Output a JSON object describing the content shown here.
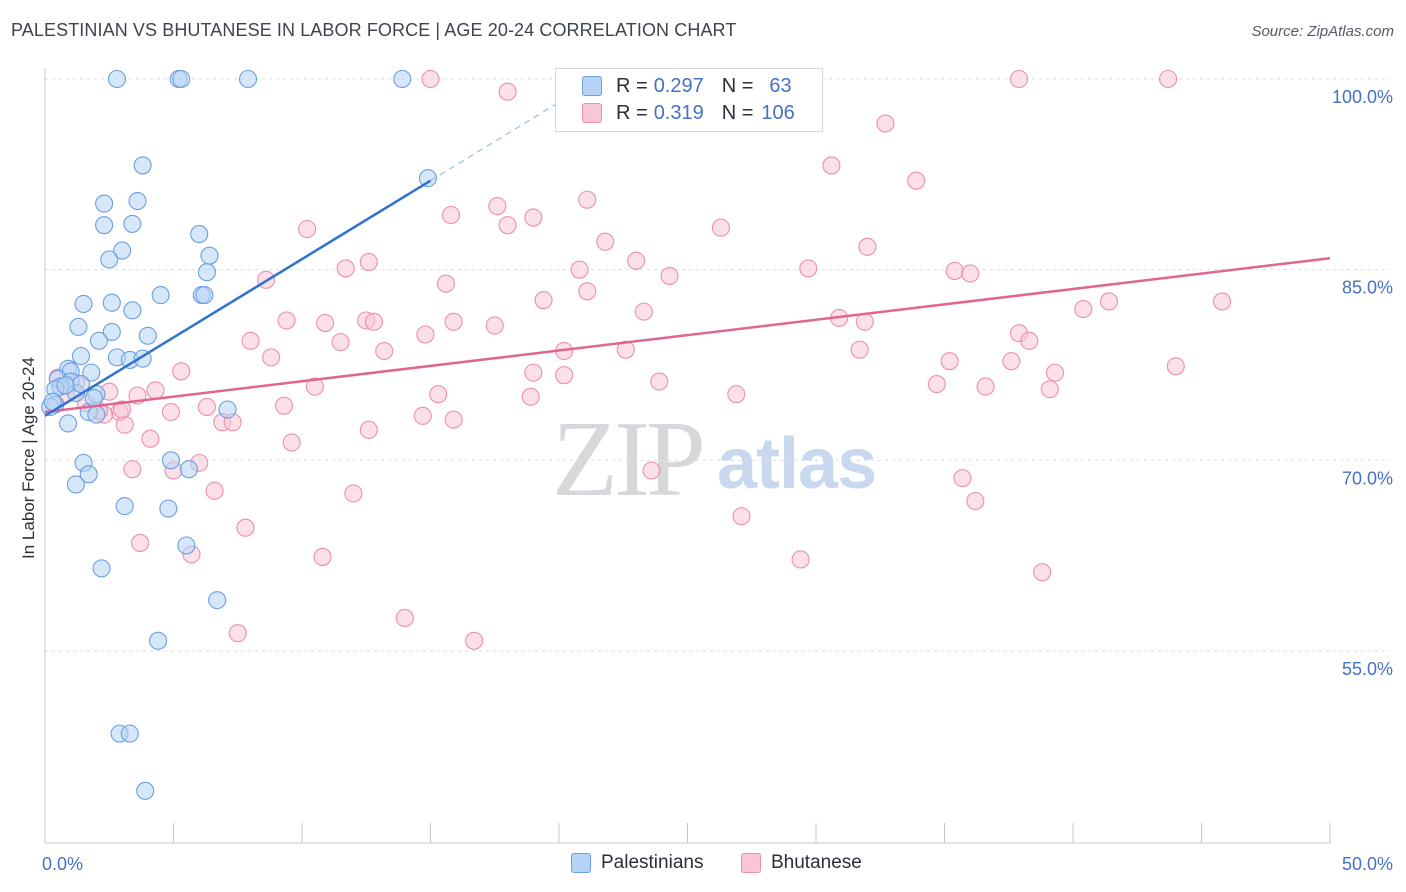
{
  "title": "PALESTINIAN VS BHUTANESE IN LABOR FORCE | AGE 20-24 CORRELATION CHART",
  "source": "Source: ZipAtlas.com",
  "watermark": {
    "zip": "ZIP",
    "atlas": "atlas"
  },
  "legend": {
    "series": [
      {
        "name": "Palestinians",
        "r_label": "R =",
        "r_value": "0.297",
        "n_label": "N =",
        "n_value": "63",
        "fill": "#b7d3f6",
        "stroke": "#6a9fe0"
      },
      {
        "name": "Bhutanese",
        "r_label": "R =",
        "r_value": "0.319",
        "n_label": "N =",
        "n_value": "106",
        "fill": "#f9c6d6",
        "stroke": "#ec8fab"
      }
    ]
  },
  "colors": {
    "blue_line": "#2f72d0",
    "pink_line": "#e06590",
    "axis_tick_text": "#4472c4",
    "grid": "#dadde3"
  },
  "chart_data": {
    "type": "scatter",
    "title": "PALESTINIAN VS BHUTANESE IN LABOR FORCE | AGE 20-24 CORRELATION CHART",
    "xlabel": "",
    "ylabel": "In Labor Force | Age 20-24",
    "xlim": [
      0,
      50
    ],
    "ylim": [
      40,
      102
    ],
    "x_tick_labels": [
      "0.0%",
      "50.0%"
    ],
    "y_ticks": [
      55,
      70,
      85,
      100
    ],
    "y_tick_labels": [
      "55.0%",
      "70.0%",
      "85.0%",
      "100.0%"
    ],
    "grid": true,
    "legend_position": "top-center",
    "series": [
      {
        "name": "Palestinians",
        "trend": {
          "x": [
            0,
            15
          ],
          "y": [
            73.5,
            92.0
          ],
          "dashed_to": [
            21,
            99.4
          ]
        },
        "points": [
          [
            2.8,
            100
          ],
          [
            5.2,
            100
          ],
          [
            5.3,
            100
          ],
          [
            7.9,
            100
          ],
          [
            13.9,
            100
          ],
          [
            14.9,
            92.2
          ],
          [
            3.8,
            93.2
          ],
          [
            2.3,
            90.2
          ],
          [
            3.6,
            90.4
          ],
          [
            2.3,
            88.5
          ],
          [
            3.4,
            88.6
          ],
          [
            6.0,
            87.8
          ],
          [
            3.0,
            86.5
          ],
          [
            2.5,
            85.8
          ],
          [
            6.4,
            86.1
          ],
          [
            6.3,
            84.8
          ],
          [
            4.5,
            83.0
          ],
          [
            6.1,
            83.0
          ],
          [
            6.2,
            83.0
          ],
          [
            1.5,
            82.3
          ],
          [
            2.6,
            82.4
          ],
          [
            3.4,
            81.8
          ],
          [
            1.3,
            80.5
          ],
          [
            2.6,
            80.1
          ],
          [
            4.0,
            79.8
          ],
          [
            2.1,
            79.4
          ],
          [
            1.4,
            78.2
          ],
          [
            2.8,
            78.1
          ],
          [
            3.3,
            77.9
          ],
          [
            3.8,
            78.0
          ],
          [
            0.9,
            77.2
          ],
          [
            1.0,
            77.0
          ],
          [
            1.8,
            76.9
          ],
          [
            0.5,
            76.4
          ],
          [
            1.0,
            76.2
          ],
          [
            0.6,
            75.8
          ],
          [
            0.4,
            75.6
          ],
          [
            1.2,
            75.3
          ],
          [
            2.0,
            75.2
          ],
          [
            0.4,
            74.4
          ],
          [
            0.2,
            74.2
          ],
          [
            1.7,
            73.8
          ],
          [
            2.0,
            73.6
          ],
          [
            7.1,
            74.0
          ],
          [
            0.9,
            72.9
          ],
          [
            1.5,
            69.8
          ],
          [
            4.9,
            70.0
          ],
          [
            1.7,
            68.9
          ],
          [
            5.6,
            69.3
          ],
          [
            1.2,
            68.1
          ],
          [
            3.1,
            66.4
          ],
          [
            4.8,
            66.2
          ],
          [
            5.5,
            63.3
          ],
          [
            2.2,
            61.5
          ],
          [
            6.7,
            59.0
          ],
          [
            4.4,
            55.8
          ],
          [
            2.9,
            48.5
          ],
          [
            3.3,
            48.5
          ],
          [
            3.9,
            44.0
          ],
          [
            1.4,
            76.0
          ],
          [
            0.8,
            75.9
          ],
          [
            0.3,
            74.6
          ],
          [
            1.9,
            74.9
          ]
        ]
      },
      {
        "name": "Bhutanese",
        "trend": {
          "x": [
            0,
            50
          ],
          "y": [
            73.8,
            85.9
          ]
        },
        "points": [
          [
            15.0,
            100
          ],
          [
            25.5,
            100
          ],
          [
            37.9,
            100
          ],
          [
            43.7,
            100
          ],
          [
            18.0,
            99.0
          ],
          [
            32.7,
            96.5
          ],
          [
            30.6,
            93.2
          ],
          [
            33.9,
            92.0
          ],
          [
            21.1,
            90.5
          ],
          [
            17.6,
            90.0
          ],
          [
            19.0,
            89.1
          ],
          [
            15.8,
            89.3
          ],
          [
            18.0,
            88.5
          ],
          [
            10.2,
            88.2
          ],
          [
            26.3,
            88.3
          ],
          [
            21.8,
            87.2
          ],
          [
            32.0,
            86.8
          ],
          [
            23.0,
            85.7
          ],
          [
            12.6,
            85.6
          ],
          [
            11.7,
            85.1
          ],
          [
            20.8,
            85.0
          ],
          [
            29.7,
            85.1
          ],
          [
            35.4,
            84.9
          ],
          [
            36.0,
            84.7
          ],
          [
            24.3,
            84.5
          ],
          [
            8.6,
            84.2
          ],
          [
            15.6,
            83.9
          ],
          [
            21.1,
            83.3
          ],
          [
            19.4,
            82.6
          ],
          [
            23.3,
            81.7
          ],
          [
            41.4,
            82.5
          ],
          [
            45.8,
            82.5
          ],
          [
            40.4,
            81.9
          ],
          [
            30.9,
            81.2
          ],
          [
            31.9,
            80.9
          ],
          [
            12.5,
            81.0
          ],
          [
            12.8,
            80.9
          ],
          [
            15.9,
            80.9
          ],
          [
            10.9,
            80.8
          ],
          [
            9.4,
            81.0
          ],
          [
            17.5,
            80.6
          ],
          [
            14.8,
            79.9
          ],
          [
            8.0,
            79.4
          ],
          [
            11.5,
            79.3
          ],
          [
            37.9,
            80.0
          ],
          [
            38.3,
            79.4
          ],
          [
            13.2,
            78.6
          ],
          [
            20.2,
            78.6
          ],
          [
            22.6,
            78.7
          ],
          [
            31.7,
            78.7
          ],
          [
            8.8,
            78.1
          ],
          [
            35.2,
            77.8
          ],
          [
            37.6,
            77.8
          ],
          [
            44.0,
            77.4
          ],
          [
            5.3,
            77.0
          ],
          [
            19.0,
            76.9
          ],
          [
            20.2,
            76.7
          ],
          [
            39.3,
            76.9
          ],
          [
            10.5,
            75.8
          ],
          [
            23.9,
            76.2
          ],
          [
            34.7,
            76.0
          ],
          [
            36.6,
            75.8
          ],
          [
            39.1,
            75.6
          ],
          [
            4.3,
            75.5
          ],
          [
            15.3,
            75.2
          ],
          [
            18.9,
            75.0
          ],
          [
            26.9,
            75.2
          ],
          [
            2.5,
            75.4
          ],
          [
            3.6,
            75.1
          ],
          [
            6.3,
            74.2
          ],
          [
            9.3,
            74.3
          ],
          [
            2.9,
            73.8
          ],
          [
            4.9,
            73.8
          ],
          [
            2.3,
            73.6
          ],
          [
            14.7,
            73.5
          ],
          [
            15.9,
            73.2
          ],
          [
            6.9,
            73.0
          ],
          [
            7.3,
            73.0
          ],
          [
            3.1,
            72.8
          ],
          [
            12.6,
            72.4
          ],
          [
            4.1,
            71.7
          ],
          [
            9.6,
            71.4
          ],
          [
            6.0,
            69.8
          ],
          [
            3.4,
            69.3
          ],
          [
            5.0,
            69.2
          ],
          [
            23.6,
            69.2
          ],
          [
            35.7,
            68.6
          ],
          [
            6.6,
            67.6
          ],
          [
            12.0,
            67.4
          ],
          [
            36.2,
            66.8
          ],
          [
            27.1,
            65.6
          ],
          [
            7.8,
            64.7
          ],
          [
            3.7,
            63.5
          ],
          [
            5.7,
            62.6
          ],
          [
            10.8,
            62.4
          ],
          [
            29.4,
            62.2
          ],
          [
            38.8,
            61.2
          ],
          [
            14.0,
            57.6
          ],
          [
            7.5,
            56.4
          ],
          [
            16.7,
            55.8
          ],
          [
            0.5,
            76.5
          ],
          [
            1.2,
            76.1
          ],
          [
            1.6,
            74.5
          ],
          [
            2.1,
            73.9
          ],
          [
            0.8,
            75.2
          ],
          [
            3.0,
            74.0
          ]
        ]
      }
    ]
  }
}
